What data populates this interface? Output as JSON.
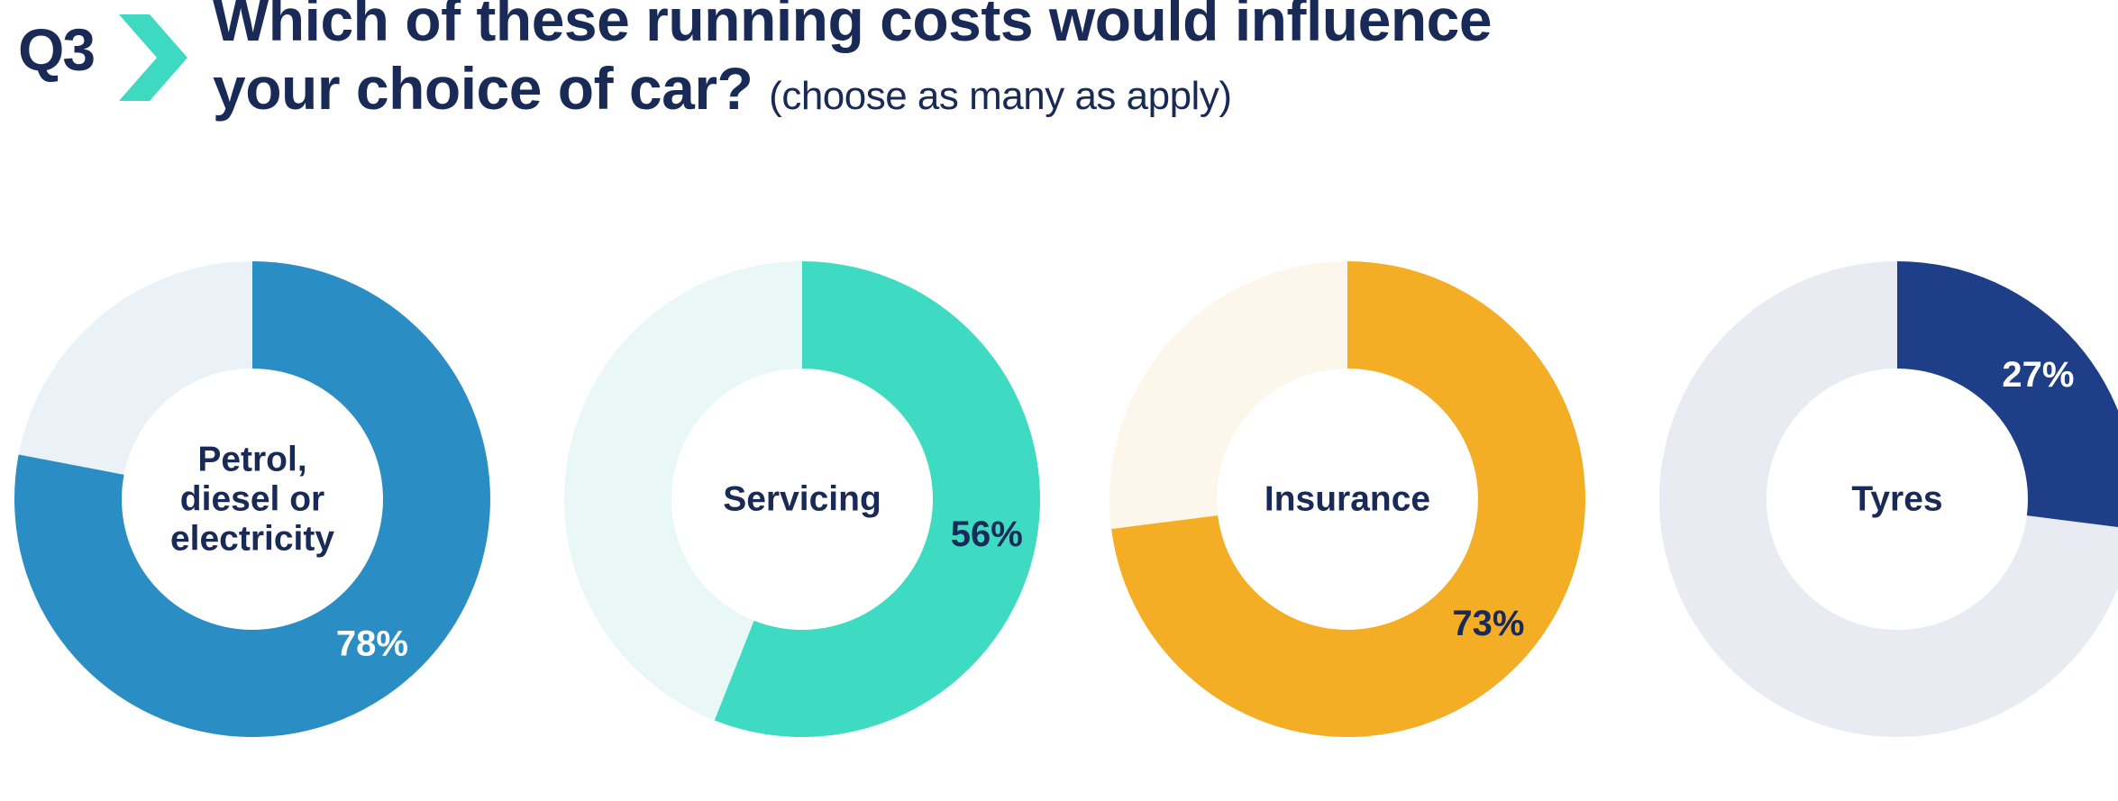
{
  "question": {
    "number": "Q3",
    "title_line1": "Which of these running costs would influence",
    "title_line2": "your choice of car?",
    "subtitle": "(choose as many as apply)"
  },
  "colors": {
    "navy": "#1a2a57",
    "accent_chevron": "#3dd9c1"
  },
  "chart_data": [
    {
      "type": "pie",
      "label_lines": [
        "Petrol,",
        "diesel or",
        "electricity"
      ],
      "value": 78,
      "value_label": "78%",
      "fill_color": "#2a8ec4",
      "track_color": "#eaf2f8",
      "value_label_color": "#ffffff"
    },
    {
      "type": "pie",
      "label_lines": [
        "Servicing"
      ],
      "value": 56,
      "value_label": "56%",
      "fill_color": "#3fdac2",
      "track_color": "#e9f8f6",
      "value_label_color": "#1a2a57"
    },
    {
      "type": "pie",
      "label_lines": [
        "Insurance"
      ],
      "value": 73,
      "value_label": "73%",
      "fill_color": "#f3ae25",
      "track_color": "#fdf6eb",
      "value_label_color": "#1a2a57"
    },
    {
      "type": "pie",
      "label_lines": [
        "Tyres"
      ],
      "value": 27,
      "value_label": "27%",
      "fill_color": "#1e3f87",
      "track_color": "#e8ecf2",
      "value_label_color": "#ffffff"
    }
  ]
}
